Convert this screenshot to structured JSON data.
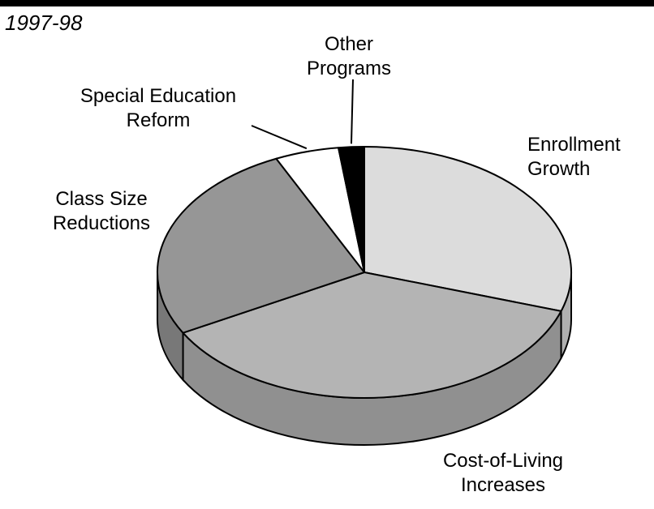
{
  "period_label": "1997-98",
  "chart_data": {
    "type": "pie",
    "title": "",
    "categories": [
      "Enrollment Growth",
      "Cost-of-Living Increases",
      "Class Size Reductions",
      "Special Education Reform",
      "Other Programs"
    ],
    "values": [
      30,
      37,
      26,
      5,
      2
    ],
    "unit": "percent (estimated)",
    "colors": [
      "#dcdcdc",
      "#b4b4b4",
      "#969696",
      "#ffffff",
      "#000000"
    ],
    "legend": "none",
    "labels": [
      {
        "lines": [
          "Enrollment",
          "Growth"
        ]
      },
      {
        "lines": [
          "Cost-of-Living",
          "Increases"
        ]
      },
      {
        "lines": [
          "Class Size",
          "Reductions"
        ]
      },
      {
        "lines": [
          "Special Education",
          "Reform"
        ]
      },
      {
        "lines": [
          "Other",
          "Programs"
        ]
      }
    ]
  }
}
